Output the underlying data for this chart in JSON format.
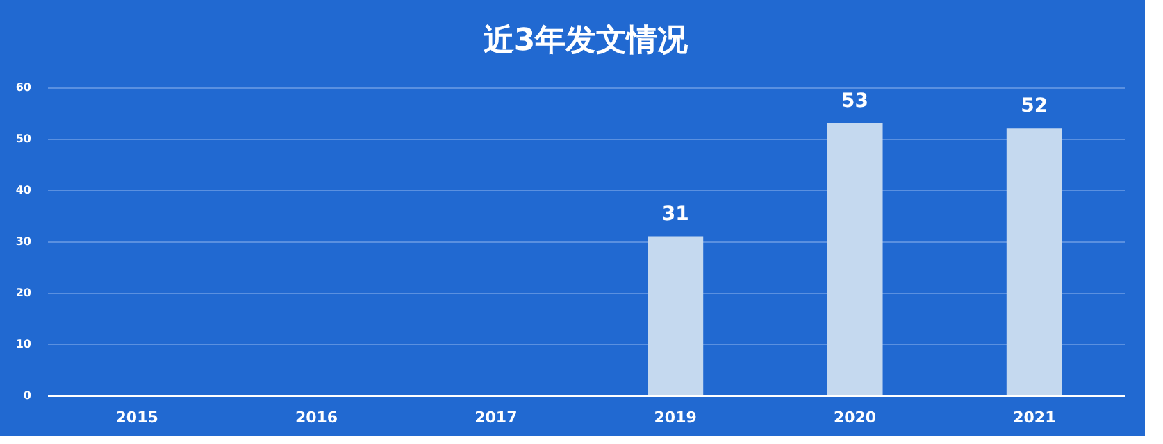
{
  "chart_data": {
    "type": "bar",
    "title": "近3年发文情况",
    "categories": [
      "2015",
      "2016",
      "2017",
      "2019",
      "2020",
      "2021"
    ],
    "values": [
      null,
      null,
      null,
      31,
      53,
      52
    ],
    "color": "#c5d9ef",
    "ylim": [
      0,
      60
    ],
    "yticks": [
      0,
      10,
      20,
      30,
      40,
      50,
      60
    ],
    "grid": "y",
    "data_labels": true
  }
}
